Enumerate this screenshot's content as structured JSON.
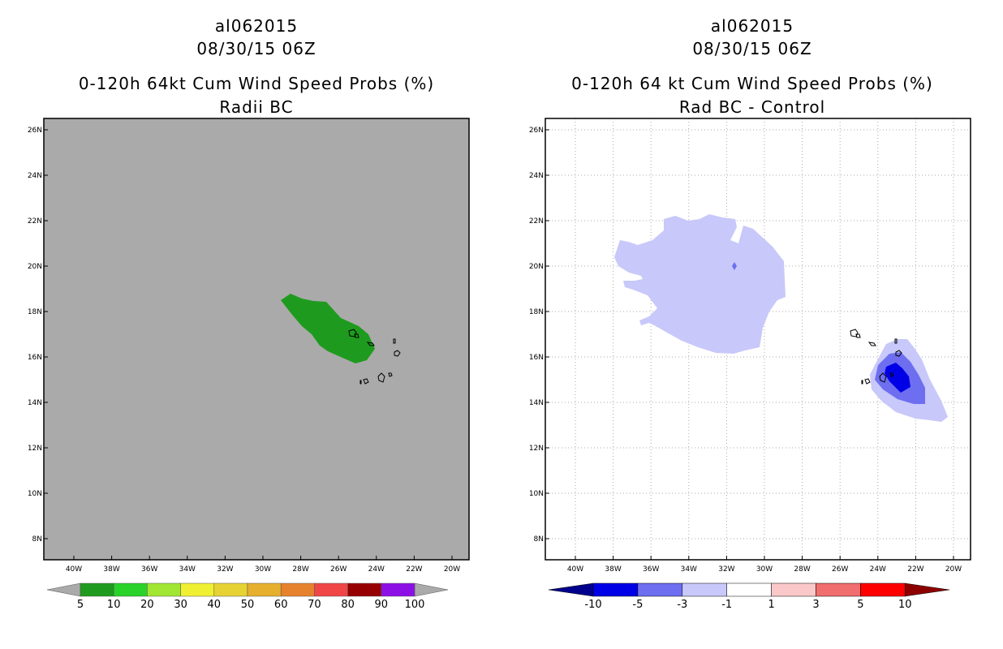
{
  "left_panel": {
    "title_line1": "al062015",
    "title_line2": "08/30/15 06Z",
    "title_line3": "0-120h 64kt Cum Wind Speed Probs (%)",
    "title_line4": "Radii BC",
    "colorbar": {
      "colors": [
        "#1e9b1e",
        "#2ad22a",
        "#a0e632",
        "#f0f032",
        "#e6d232",
        "#e6af2d",
        "#e6822d",
        "#f04646",
        "#960000",
        "#8c0fe6"
      ],
      "labels": [
        "5",
        "10",
        "20",
        "30",
        "40",
        "50",
        "60",
        "70",
        "80",
        "90",
        "100"
      ]
    }
  },
  "right_panel": {
    "title_line1": "al062015",
    "title_line2": "08/30/15 06Z",
    "title_line3": "0-120h 64 kt Cum Wind Speed Probs (%)",
    "title_line4": "Rad BC - Control",
    "colorbar": {
      "colors": [
        "#0000e6",
        "#6e6ef0",
        "#c8c8fa",
        "#ffffff",
        "#fac8c8",
        "#f06e6e",
        "#ff0000"
      ],
      "left_tip": "#00008c",
      "right_tip": "#8c0000",
      "labels": [
        "-10",
        "-5",
        "-3",
        "-1",
        "1",
        "3",
        "5",
        "10"
      ]
    }
  },
  "map": {
    "lon_labels": [
      "40W",
      "38W",
      "36W",
      "34W",
      "32W",
      "30W",
      "28W",
      "26W",
      "24W",
      "22W",
      "20W"
    ],
    "lat_labels": [
      "26N",
      "24N",
      "22N",
      "20N",
      "18N",
      "16N",
      "14N",
      "12N",
      "10N",
      "8N"
    ],
    "lon_values": [
      -40,
      -38,
      -36,
      -34,
      -32,
      -30,
      -28,
      -26,
      -24,
      -22,
      -20
    ],
    "lat_values": [
      26,
      24,
      22,
      20,
      18,
      16,
      14,
      12,
      10,
      8
    ],
    "colors": {
      "left_background": "#aaaaaa",
      "right_background": "#ffffff",
      "prob_green": "#1e9b1e",
      "diff_light": "#c8c8fa",
      "diff_mid": "#6e6ef0",
      "diff_dark": "#0000e6",
      "grid": "#aaaaaa"
    }
  }
}
